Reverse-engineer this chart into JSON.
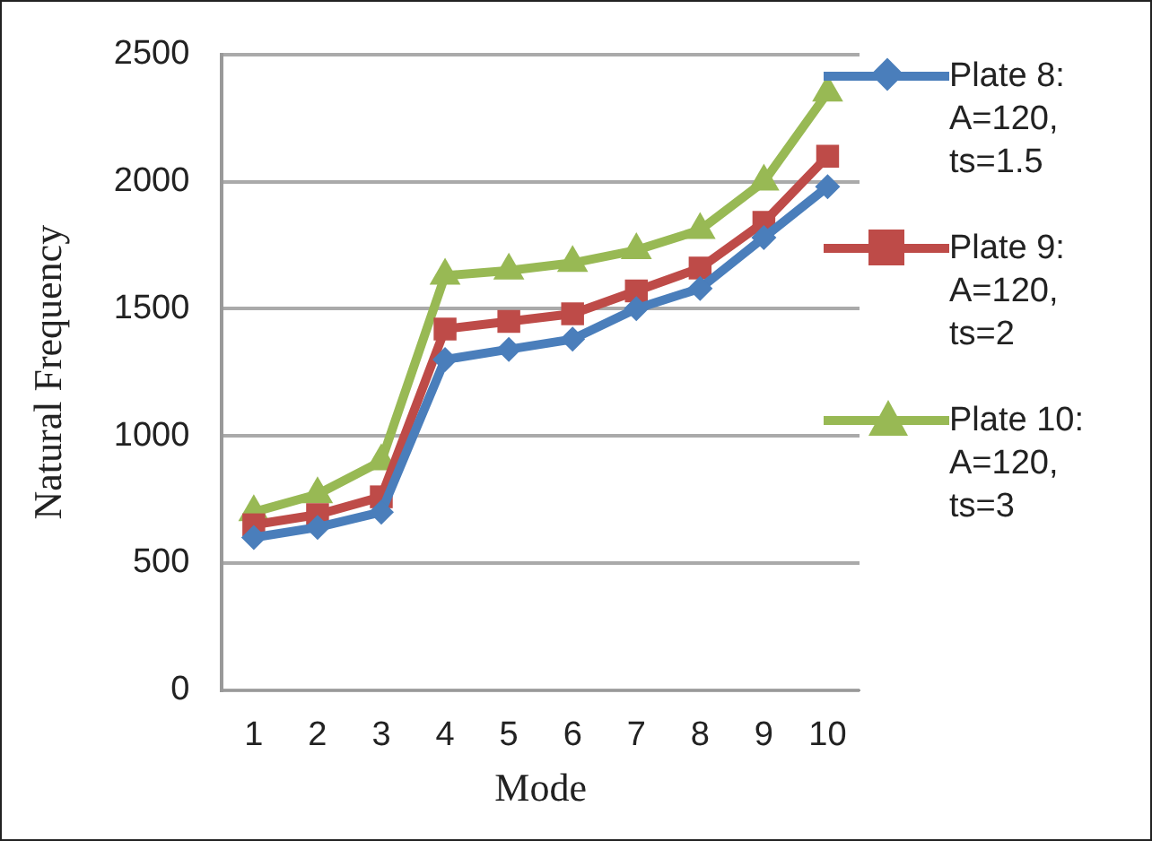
{
  "chart_data": {
    "type": "line",
    "xlabel": "Mode",
    "ylabel": "Natural Frequency",
    "categories": [
      "1",
      "2",
      "3",
      "4",
      "5",
      "6",
      "7",
      "8",
      "9",
      "10"
    ],
    "ylim": [
      0,
      2500
    ],
    "yticks": [
      0,
      500,
      1000,
      1500,
      2000,
      2500
    ],
    "grid": "y",
    "legend": "right",
    "line_style": "solid",
    "series": [
      {
        "name": "Plate 8: A=120, ts=1.5",
        "color": "#4a7ebb",
        "marker": "diamond",
        "values": [
          600,
          640,
          700,
          1300,
          1340,
          1380,
          1500,
          1580,
          1780,
          1980
        ]
      },
      {
        "name": "Plate 9: A=120, ts=2",
        "color": "#be4b48",
        "marker": "square",
        "values": [
          650,
          690,
          760,
          1420,
          1450,
          1480,
          1570,
          1660,
          1840,
          2100
        ]
      },
      {
        "name": "Plate 10: A=120, ts=3",
        "color": "#98b954",
        "marker": "triangle",
        "values": [
          700,
          770,
          900,
          1630,
          1650,
          1680,
          1730,
          1810,
          2000,
          2350
        ]
      }
    ]
  }
}
